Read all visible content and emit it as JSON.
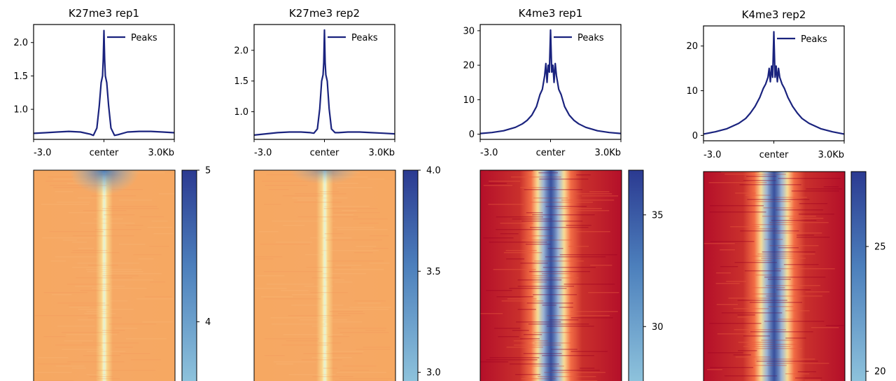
{
  "colors": {
    "profile_line": "#1a237e",
    "heatmap_low": "#b30026",
    "heatmap_mid": "#fdf6b0",
    "heatmap_high": "#2b3a91",
    "colorbar_low": "#8ec3dc",
    "colorbar_high": "#2b3a91"
  },
  "chart_data": [
    {
      "type": "line",
      "title": "K27me3 rep1",
      "x_ticks": [
        "-3.0",
        "center",
        "3.0Kb"
      ],
      "y_ticks": [
        1.0,
        1.5,
        2.0
      ],
      "y_tick_labels": [
        "1.0",
        "1.5",
        "2.0"
      ],
      "ylim": [
        0.55,
        2.27
      ],
      "legend": "Peaks",
      "legend_loc": "top-right",
      "series": [
        {
          "name": "Peaks",
          "x": [
            -3.0,
            -2.5,
            -2.0,
            -1.5,
            -1.0,
            -0.6,
            -0.45,
            -0.3,
            -0.2,
            -0.12,
            -0.06,
            -0.03,
            0.0,
            0.03,
            0.06,
            0.12,
            0.2,
            0.3,
            0.45,
            0.6,
            1.0,
            1.5,
            2.0,
            2.5,
            3.0
          ],
          "y": [
            0.64,
            0.65,
            0.66,
            0.67,
            0.66,
            0.63,
            0.61,
            0.72,
            1.05,
            1.4,
            1.5,
            1.75,
            2.18,
            1.75,
            1.5,
            1.4,
            1.05,
            0.72,
            0.61,
            0.62,
            0.66,
            0.67,
            0.67,
            0.66,
            0.65
          ]
        }
      ],
      "colorbar": {
        "ticks": [
          4,
          5
        ],
        "tick_labels": [
          "4",
          "5"
        ],
        "range_shown": [
          3.6,
          5.0
        ]
      },
      "heatmap": {
        "center_value": 3.8,
        "background_value": 5.0,
        "left_band_value": 4.8
      }
    },
    {
      "type": "line",
      "title": "K27me3 rep2",
      "x_ticks": [
        "-3.0",
        "center",
        "3.0Kb"
      ],
      "y_ticks": [
        1.0,
        1.5,
        2.0
      ],
      "y_tick_labels": [
        "1.0",
        "1.5",
        "2.0"
      ],
      "ylim": [
        0.55,
        2.42
      ],
      "legend": "Peaks",
      "legend_loc": "top-right",
      "series": [
        {
          "name": "Peaks",
          "x": [
            -3.0,
            -2.5,
            -2.0,
            -1.5,
            -1.0,
            -0.6,
            -0.45,
            -0.3,
            -0.2,
            -0.12,
            -0.06,
            -0.03,
            0.0,
            0.03,
            0.06,
            0.12,
            0.2,
            0.3,
            0.45,
            0.6,
            1.0,
            1.5,
            2.0,
            2.5,
            3.0
          ],
          "y": [
            0.62,
            0.64,
            0.66,
            0.67,
            0.67,
            0.66,
            0.65,
            0.72,
            1.05,
            1.5,
            1.6,
            1.8,
            2.33,
            1.8,
            1.6,
            1.5,
            1.05,
            0.72,
            0.66,
            0.66,
            0.67,
            0.67,
            0.66,
            0.65,
            0.64
          ]
        }
      ],
      "colorbar": {
        "ticks": [
          3.0,
          3.5,
          4.0
        ],
        "tick_labels": [
          "3.0",
          "3.5",
          "4.0"
        ],
        "range_shown": [
          2.95,
          4.0
        ]
      },
      "heatmap": {
        "center_value": 3.2,
        "background_value": 4.0,
        "left_band_value": 3.9
      }
    },
    {
      "type": "line",
      "title": "K4me3 rep1",
      "x_ticks": [
        "-3.0",
        "center",
        "3.0Kb"
      ],
      "y_ticks": [
        0,
        10,
        20,
        30
      ],
      "y_tick_labels": [
        "0",
        "10",
        "20",
        "30"
      ],
      "ylim": [
        -1.5,
        31.8
      ],
      "legend": "Peaks",
      "legend_loc": "top-right",
      "series": [
        {
          "name": "Peaks",
          "x": [
            -3.0,
            -2.5,
            -2.0,
            -1.5,
            -1.2,
            -1.0,
            -0.8,
            -0.6,
            -0.45,
            -0.35,
            -0.25,
            -0.2,
            -0.15,
            -0.1,
            -0.05,
            0.0,
            0.05,
            0.1,
            0.15,
            0.2,
            0.25,
            0.35,
            0.45,
            0.6,
            0.8,
            1.0,
            1.2,
            1.5,
            2.0,
            2.5,
            3.0
          ],
          "y": [
            0.2,
            0.5,
            1.0,
            2.0,
            3.0,
            4.0,
            5.5,
            8.0,
            11.5,
            13.0,
            17.0,
            20.5,
            15.0,
            20.0,
            18.0,
            30.2,
            18.0,
            20.0,
            15.0,
            20.5,
            17.0,
            13.0,
            11.5,
            8.0,
            5.5,
            4.0,
            3.0,
            2.0,
            1.0,
            0.5,
            0.2
          ]
        }
      ],
      "colorbar": {
        "ticks": [
          30,
          35
        ],
        "tick_labels": [
          "30",
          "35"
        ],
        "range_shown": [
          27.5,
          37.0
        ]
      },
      "heatmap": {
        "center_value": 36.0,
        "background_value": 27.5,
        "mid_value": 30.0
      }
    },
    {
      "type": "line",
      "title": "K4me3 rep2",
      "x_ticks": [
        "-3.0",
        "center",
        "3.0Kb"
      ],
      "y_ticks": [
        0,
        10,
        20
      ],
      "y_tick_labels": [
        "0",
        "10",
        "20"
      ],
      "ylim": [
        -1.2,
        24.5
      ],
      "legend": "Peaks",
      "legend_loc": "top-right",
      "series": [
        {
          "name": "Peaks",
          "x": [
            -3.0,
            -2.5,
            -2.0,
            -1.5,
            -1.2,
            -1.0,
            -0.8,
            -0.6,
            -0.45,
            -0.35,
            -0.25,
            -0.2,
            -0.15,
            -0.1,
            -0.05,
            0.0,
            0.05,
            0.1,
            0.15,
            0.2,
            0.25,
            0.35,
            0.45,
            0.6,
            0.8,
            1.0,
            1.2,
            1.5,
            2.0,
            2.5,
            3.0
          ],
          "y": [
            0.3,
            0.8,
            1.5,
            2.7,
            3.8,
            5.0,
            6.5,
            8.5,
            10.5,
            11.5,
            13.0,
            15.0,
            12.0,
            15.5,
            13.0,
            23.2,
            13.0,
            15.5,
            12.0,
            15.0,
            13.0,
            11.5,
            10.5,
            8.5,
            6.5,
            5.0,
            3.8,
            2.7,
            1.5,
            0.8,
            0.3
          ]
        }
      ],
      "colorbar": {
        "ticks": [
          20,
          25
        ],
        "tick_labels": [
          "20",
          "25"
        ],
        "range_shown": [
          19.5,
          28.0
        ]
      },
      "heatmap": {
        "center_value": 27.0,
        "background_value": 19.5,
        "mid_value": 22.0
      }
    }
  ]
}
